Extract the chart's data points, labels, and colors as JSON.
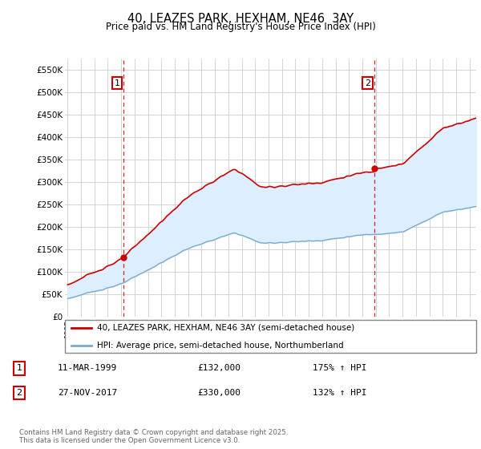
{
  "title": "40, LEAZES PARK, HEXHAM, NE46  3AY",
  "subtitle": "Price paid vs. HM Land Registry's House Price Index (HPI)",
  "legend_line1": "40, LEAZES PARK, HEXHAM, NE46 3AY (semi-detached house)",
  "legend_line2": "HPI: Average price, semi-detached house, Northumberland",
  "footer": "Contains HM Land Registry data © Crown copyright and database right 2025.\nThis data is licensed under the Open Government Licence v3.0.",
  "annotation1_label": "1",
  "annotation1_date": "11-MAR-1999",
  "annotation1_price": "£132,000",
  "annotation1_hpi": "175% ↑ HPI",
  "annotation2_label": "2",
  "annotation2_date": "27-NOV-2017",
  "annotation2_price": "£330,000",
  "annotation2_hpi": "132% ↑ HPI",
  "red_color": "#cc0000",
  "blue_color": "#7aaacc",
  "fill_color": "#ddeeff",
  "grid_color": "#cccccc",
  "background_color": "#ffffff",
  "ylim": [
    0,
    575000
  ],
  "yticks": [
    0,
    50000,
    100000,
    150000,
    200000,
    250000,
    300000,
    350000,
    400000,
    450000,
    500000,
    550000
  ],
  "ytick_labels": [
    "£0",
    "£50K",
    "£100K",
    "£150K",
    "£200K",
    "£250K",
    "£300K",
    "£350K",
    "£400K",
    "£450K",
    "£500K",
    "£550K"
  ],
  "sale1_x": 1999.19,
  "sale1_y": 132000,
  "sale2_x": 2017.9,
  "sale2_y": 330000,
  "vline1_x": 1999.19,
  "vline2_x": 2017.9,
  "xlim_left": 1994.8,
  "xlim_right": 2025.5
}
